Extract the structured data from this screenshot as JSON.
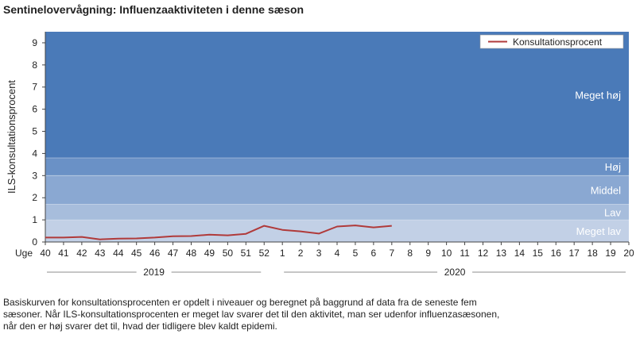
{
  "title": "Sentinelovervågning: Influenzaaktiviteten i denne sæson",
  "footnote": [
    "Basiskurven  for konsultationsprocenten  er opdelt i niveauer og beregnet  på baggrund  af data fra de seneste  fem",
    "sæsoner.  Når ILS-konsultationsprocenten  er meget lav svarer det til den aktivitet, man ser udenfor influenzasæsonen,",
    "når den er høj svarer det til, hvad der tidligere  blev kaldt epidemi."
  ],
  "chart_data": {
    "type": "line",
    "ylabel": "ILS-konsultationsprocent",
    "xlabel_prefix": "Uge",
    "ylim": [
      0,
      9.5
    ],
    "yticks": [
      0,
      1,
      2,
      3,
      4,
      5,
      6,
      7,
      8,
      9
    ],
    "categories": [
      "40",
      "41",
      "42",
      "43",
      "44",
      "45",
      "46",
      "47",
      "48",
      "49",
      "50",
      "51",
      "52",
      "1",
      "2",
      "3",
      "4",
      "5",
      "6",
      "7",
      "8",
      "9",
      "10",
      "11",
      "12",
      "13",
      "14",
      "15",
      "16",
      "17",
      "18",
      "19",
      "20"
    ],
    "year_groups": [
      {
        "label": "2019",
        "from": "40",
        "to": "52"
      },
      {
        "label": "2020",
        "from": "1",
        "to": "20"
      }
    ],
    "bands": [
      {
        "label": "Meget lav",
        "from": 0,
        "to": 1.0,
        "color": "#c2d0e6"
      },
      {
        "label": "Lav",
        "from": 1.0,
        "to": 1.7,
        "color": "#a7bddc"
      },
      {
        "label": "Middel",
        "from": 1.7,
        "to": 3.0,
        "color": "#8aa8d2"
      },
      {
        "label": "Høj",
        "from": 3.0,
        "to": 3.8,
        "color": "#6a91c6"
      },
      {
        "label": "Meget høj",
        "from": 3.8,
        "to": 9.5,
        "color": "#4a7ab8"
      }
    ],
    "series": [
      {
        "name": "Konsultationsprocent",
        "color": "#b03a3a",
        "values": [
          0.2,
          0.2,
          0.23,
          0.12,
          0.15,
          0.16,
          0.2,
          0.26,
          0.27,
          0.33,
          0.3,
          0.37,
          0.73,
          0.55,
          0.48,
          0.38,
          0.7,
          0.75,
          0.66,
          0.73,
          null,
          null,
          null,
          null,
          null,
          null,
          null,
          null,
          null,
          null,
          null,
          null,
          null
        ]
      }
    ],
    "legend": {
      "position": "top-right",
      "label": "Konsultationsprocent"
    },
    "grid": false
  }
}
